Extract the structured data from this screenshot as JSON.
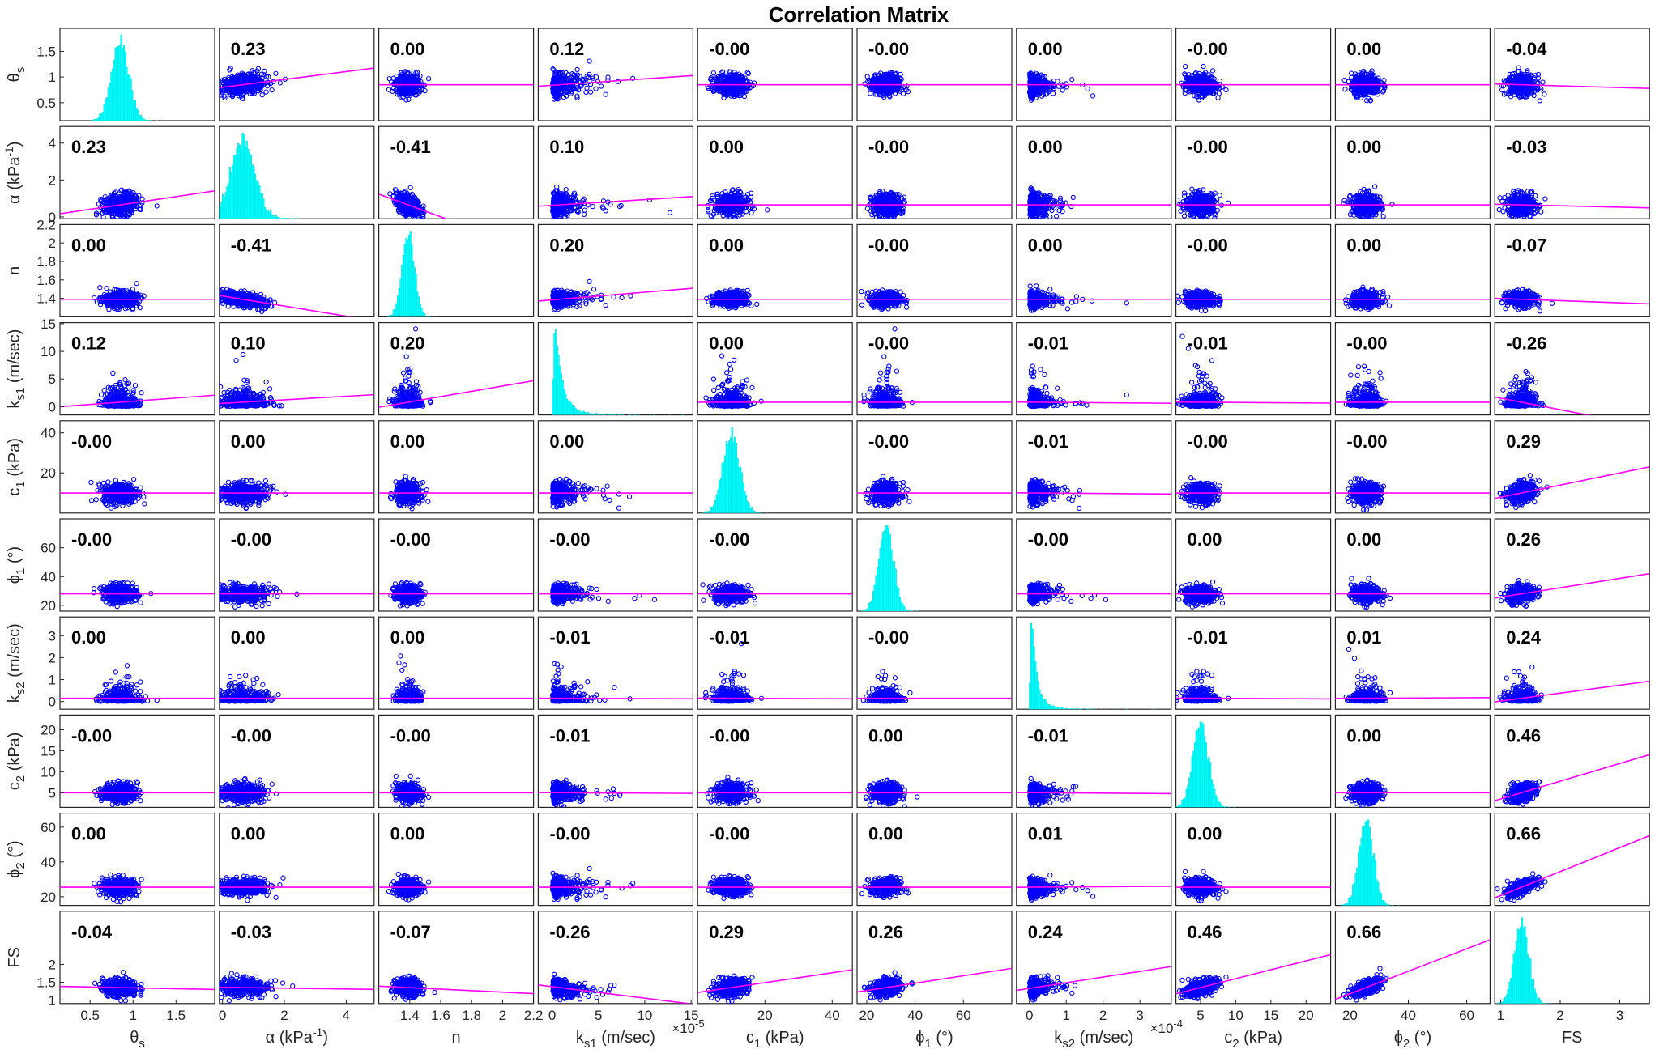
{
  "chart_data": {
    "type": "scatter",
    "title": "Correlation Matrix",
    "layout": "scatter-matrix",
    "variables": [
      {
        "key": "theta_s",
        "label": "θs",
        "label_main": "θ",
        "label_sub": "s",
        "label_post": "",
        "range": [
          0.15,
          1.95
        ],
        "ticks": [
          0.5,
          1,
          1.5
        ],
        "ytick_labels": [
          "0.5",
          "1",
          "1.5"
        ],
        "xticks": [
          0.5,
          1,
          1.5
        ],
        "xtick_labels": [
          "0.5",
          "1",
          "1.5"
        ],
        "mean": 0.85,
        "sd": 0.1,
        "exp": ""
      },
      {
        "key": "alpha",
        "label": "α (kPa-1)",
        "label_main": "α (kPa",
        "label_sub": "",
        "label_sup": "-1",
        "label_post": ")",
        "range": [
          -0.1,
          4.9
        ],
        "ticks": [
          0,
          2,
          4
        ],
        "ytick_labels": [
          "0",
          "2",
          "4"
        ],
        "xticks": [
          0,
          2,
          4
        ],
        "xtick_labels": [
          "0",
          "2",
          "4"
        ],
        "mean": 0.65,
        "sd": 0.3,
        "exp": ""
      },
      {
        "key": "n",
        "label": "n",
        "label_main": "n",
        "label_sub": "",
        "label_post": "",
        "range": [
          1.2,
          2.2
        ],
        "ticks": [
          1.4,
          1.6,
          1.8,
          2,
          2.2
        ],
        "ytick_labels": [
          "1.4",
          "1.6",
          "1.8",
          "2",
          "2.2"
        ],
        "xticks": [
          1.4,
          1.6,
          1.8,
          2,
          2.2
        ],
        "xtick_labels": [
          "1.4",
          "1.6",
          "1.8",
          "2",
          "2.2"
        ],
        "mean": 1.39,
        "sd": 0.04,
        "exp": ""
      },
      {
        "key": "ks1",
        "label": "ks1 (m/sec)",
        "label_main": "k",
        "label_sub": "s1",
        "label_post": " (m/sec)",
        "range": [
          -1.5,
          15.2
        ],
        "ticks": [
          0,
          5,
          10,
          15
        ],
        "ytick_labels": [
          "0",
          "5",
          "10",
          "15"
        ],
        "xticks": [
          0,
          5,
          10,
          15
        ],
        "xtick_labels": [
          "0",
          "5",
          "10",
          "15"
        ],
        "mean": 0.8,
        "sd": 0.9,
        "exp": "×10-5",
        "exp_main": "×10",
        "exp_sup": "-5"
      },
      {
        "key": "c1",
        "label": "c1 (kPa)",
        "label_main": "c",
        "label_sub": "1",
        "label_post": " (kPa)",
        "range": [
          0,
          46
        ],
        "ticks": [
          20,
          40
        ],
        "ytick_labels": [
          "20",
          "40"
        ],
        "xticks": [
          20,
          40
        ],
        "xtick_labels": [
          "20",
          "40"
        ],
        "mean": 10,
        "sd": 2.5,
        "exp": ""
      },
      {
        "key": "phi1",
        "label": "ϕ1 (°)",
        "label_main": "ϕ",
        "label_sub": "1",
        "label_post": " (°)",
        "range": [
          16,
          80
        ],
        "ticks": [
          20,
          40,
          60
        ],
        "ytick_labels": [
          "20",
          "40",
          "60"
        ],
        "xticks": [
          20,
          40,
          60
        ],
        "xtick_labels": [
          "20",
          "40",
          "60"
        ],
        "mean": 28,
        "sd": 3,
        "exp": ""
      },
      {
        "key": "ks2",
        "label": "ks2 (m/sec)",
        "label_main": "k",
        "label_sub": "s2",
        "label_post": " (m/sec)",
        "range": [
          -0.35,
          3.85
        ],
        "ticks": [
          0,
          1,
          2,
          3
        ],
        "ytick_labels": [
          "0",
          "1",
          "2",
          "3"
        ],
        "xticks": [
          0,
          1,
          2,
          3
        ],
        "xtick_labels": [
          "0",
          "1",
          "2",
          "3"
        ],
        "mean": 0.15,
        "sd": 0.2,
        "exp": "×10-4",
        "exp_main": "×10",
        "exp_sup": "-4"
      },
      {
        "key": "c2",
        "label": "c2 (kPa)",
        "label_main": "c",
        "label_sub": "2",
        "label_post": " (kPa)",
        "range": [
          1.5,
          23.5
        ],
        "ticks": [
          5,
          10,
          15,
          20
        ],
        "ytick_labels": [
          "5",
          "10",
          "15",
          "20"
        ],
        "xticks": [
          5,
          10,
          15,
          20
        ],
        "xtick_labels": [
          "5",
          "10",
          "15",
          "20"
        ],
        "mean": 5,
        "sd": 1.1,
        "exp": ""
      },
      {
        "key": "phi2",
        "label": "ϕ2 (°)",
        "label_main": "ϕ",
        "label_sub": "2",
        "label_post": " (°)",
        "range": [
          15,
          68
        ],
        "ticks": [
          20,
          40,
          60
        ],
        "ytick_labels": [
          "20",
          "40",
          "60"
        ],
        "xticks": [
          20,
          40,
          60
        ],
        "xtick_labels": [
          "20",
          "40",
          "60"
        ],
        "mean": 25.5,
        "sd": 2.5,
        "exp": ""
      },
      {
        "key": "FS",
        "label": "FS",
        "label_main": "FS",
        "label_sub": "",
        "label_post": "",
        "range": [
          0.9,
          3.5
        ],
        "ticks": [
          1,
          1.5,
          2
        ],
        "ytick_labels": [
          "1",
          "1.5",
          "2"
        ],
        "xticks": [
          1,
          2,
          3
        ],
        "xtick_labels": [
          "1",
          "2",
          "3"
        ],
        "mean": 1.35,
        "sd": 0.12,
        "exp": ""
      }
    ],
    "correlations": [
      [
        "",
        "0.23",
        "0.00",
        "0.12",
        "-0.00",
        "-0.00",
        "0.00",
        "-0.00",
        "0.00",
        "-0.04"
      ],
      [
        "0.23",
        "",
        "-0.41",
        "0.10",
        "0.00",
        "-0.00",
        "0.00",
        "-0.00",
        "0.00",
        "-0.03"
      ],
      [
        "0.00",
        "-0.41",
        "",
        "0.20",
        "0.00",
        "-0.00",
        "0.00",
        "-0.00",
        "0.00",
        "-0.07"
      ],
      [
        "0.12",
        "0.10",
        "0.20",
        "",
        "0.00",
        "-0.00",
        "-0.01",
        "-0.01",
        "-0.00",
        "-0.26"
      ],
      [
        "-0.00",
        "0.00",
        "0.00",
        "0.00",
        "",
        "-0.00",
        "-0.01",
        "-0.00",
        "-0.00",
        "0.29"
      ],
      [
        "-0.00",
        "-0.00",
        "-0.00",
        "-0.00",
        "-0.00",
        "",
        "-0.00",
        "0.00",
        "0.00",
        "0.26"
      ],
      [
        "0.00",
        "0.00",
        "0.00",
        "-0.01",
        "-0.01",
        "-0.00",
        "",
        "-0.01",
        "0.01",
        "0.24"
      ],
      [
        "-0.00",
        "-0.00",
        "-0.00",
        "-0.01",
        "-0.00",
        "0.00",
        "-0.01",
        "",
        "0.00",
        "0.46"
      ],
      [
        "0.00",
        "0.00",
        "0.00",
        "-0.00",
        "-0.00",
        "0.00",
        "0.01",
        "0.00",
        "",
        "0.66"
      ],
      [
        "-0.04",
        "-0.03",
        "-0.07",
        "-0.26",
        "0.29",
        "0.26",
        "0.24",
        "0.46",
        "0.66",
        ""
      ]
    ],
    "diagonal_type": "histogram",
    "grid": false,
    "colors": {
      "scatter": "#0000ff",
      "fit_line": "#ff00ff",
      "histogram": "#00ffff",
      "frame": "#262626"
    }
  }
}
